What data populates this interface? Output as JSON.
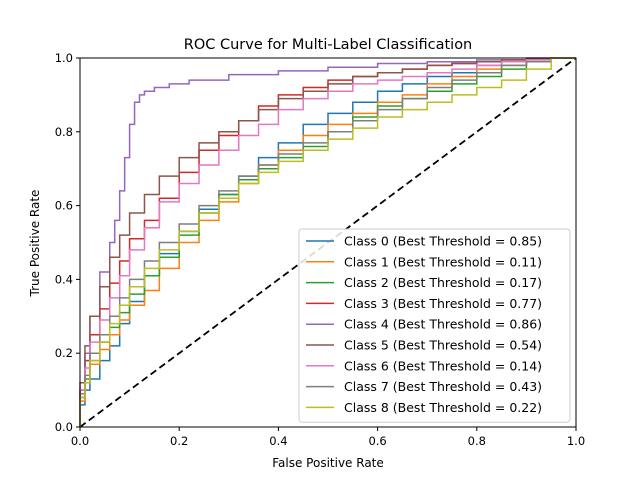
{
  "chart_data": {
    "type": "line",
    "title": "ROC Curve for Multi-Label Classification",
    "xlabel": "False Positive Rate",
    "ylabel": "True Positive Rate",
    "xlim": [
      0,
      1
    ],
    "ylim": [
      0,
      1
    ],
    "x_ticks": [
      "0.0",
      "0.2",
      "0.4",
      "0.6",
      "0.8",
      "1.0"
    ],
    "y_ticks": [
      "0.0",
      "0.2",
      "0.4",
      "0.6",
      "0.8",
      "1.0"
    ],
    "grid": false,
    "legend_position": "lower-right",
    "diagonal_reference": {
      "x": [
        0,
        1
      ],
      "y": [
        0,
        1
      ],
      "color": "#000000",
      "style": "dashed"
    },
    "series": [
      {
        "name": "Class 0 (Best Threshold = 0.85)",
        "color": "#1f77b4",
        "x": [
          0,
          0.01,
          0.02,
          0.04,
          0.06,
          0.08,
          0.1,
          0.13,
          0.16,
          0.2,
          0.24,
          0.28,
          0.32,
          0.36,
          0.4,
          0.45,
          0.5,
          0.55,
          0.6,
          0.65,
          0.7,
          0.75,
          0.8,
          0.85,
          0.9,
          0.95,
          1.0
        ],
        "y": [
          0,
          0.06,
          0.1,
          0.13,
          0.18,
          0.22,
          0.28,
          0.34,
          0.41,
          0.47,
          0.53,
          0.59,
          0.63,
          0.68,
          0.73,
          0.77,
          0.82,
          0.85,
          0.88,
          0.91,
          0.93,
          0.95,
          0.96,
          0.98,
          0.99,
          0.995,
          1.0
        ]
      },
      {
        "name": "Class 1 (Best Threshold = 0.11)",
        "color": "#ff7f0e",
        "x": [
          0,
          0.01,
          0.02,
          0.04,
          0.06,
          0.08,
          0.1,
          0.13,
          0.16,
          0.2,
          0.24,
          0.28,
          0.32,
          0.36,
          0.4,
          0.45,
          0.5,
          0.55,
          0.6,
          0.65,
          0.7,
          0.75,
          0.8,
          0.85,
          0.9,
          0.95,
          1.0
        ],
        "y": [
          0,
          0.07,
          0.12,
          0.17,
          0.21,
          0.25,
          0.29,
          0.33,
          0.37,
          0.43,
          0.5,
          0.56,
          0.61,
          0.66,
          0.71,
          0.75,
          0.79,
          0.82,
          0.85,
          0.88,
          0.9,
          0.93,
          0.95,
          0.97,
          0.98,
          0.99,
          1.0
        ]
      },
      {
        "name": "Class 2 (Best Threshold = 0.17)",
        "color": "#2ca02c",
        "x": [
          0,
          0.01,
          0.02,
          0.04,
          0.06,
          0.08,
          0.1,
          0.13,
          0.16,
          0.2,
          0.24,
          0.28,
          0.32,
          0.36,
          0.4,
          0.45,
          0.5,
          0.55,
          0.6,
          0.65,
          0.7,
          0.75,
          0.8,
          0.85,
          0.9,
          0.95,
          1.0
        ],
        "y": [
          0,
          0.08,
          0.13,
          0.18,
          0.23,
          0.27,
          0.31,
          0.36,
          0.41,
          0.46,
          0.52,
          0.58,
          0.63,
          0.67,
          0.7,
          0.73,
          0.76,
          0.8,
          0.84,
          0.87,
          0.89,
          0.91,
          0.93,
          0.95,
          0.97,
          0.99,
          1.0
        ]
      },
      {
        "name": "Class 3 (Best Threshold = 0.77)",
        "color": "#d62728",
        "x": [
          0,
          0.01,
          0.02,
          0.04,
          0.06,
          0.08,
          0.1,
          0.13,
          0.16,
          0.2,
          0.24,
          0.28,
          0.32,
          0.36,
          0.4,
          0.45,
          0.5,
          0.55,
          0.6,
          0.65,
          0.7,
          0.75,
          0.8,
          0.85,
          0.9,
          0.95,
          1.0
        ],
        "y": [
          0,
          0.1,
          0.18,
          0.25,
          0.32,
          0.39,
          0.45,
          0.51,
          0.56,
          0.62,
          0.69,
          0.75,
          0.79,
          0.83,
          0.87,
          0.9,
          0.92,
          0.94,
          0.95,
          0.96,
          0.97,
          0.98,
          0.985,
          0.99,
          0.995,
          0.998,
          1.0
        ]
      },
      {
        "name": "Class 4 (Best Threshold = 0.86)",
        "color": "#9467bd",
        "x": [
          0,
          0.01,
          0.02,
          0.04,
          0.06,
          0.07,
          0.08,
          0.09,
          0.1,
          0.11,
          0.12,
          0.13,
          0.15,
          0.18,
          0.22,
          0.3,
          0.4,
          0.5,
          0.6,
          0.7,
          0.8,
          0.9,
          1.0
        ],
        "y": [
          0,
          0.1,
          0.2,
          0.3,
          0.42,
          0.5,
          0.56,
          0.64,
          0.73,
          0.82,
          0.88,
          0.9,
          0.91,
          0.92,
          0.93,
          0.94,
          0.955,
          0.965,
          0.975,
          0.985,
          0.99,
          0.995,
          1.0
        ]
      },
      {
        "name": "Class 5 (Best Threshold = 0.54)",
        "color": "#8c564b",
        "x": [
          0,
          0.01,
          0.02,
          0.04,
          0.06,
          0.08,
          0.1,
          0.13,
          0.16,
          0.2,
          0.24,
          0.28,
          0.32,
          0.36,
          0.4,
          0.45,
          0.5,
          0.55,
          0.6,
          0.65,
          0.7,
          0.75,
          0.8,
          0.85,
          0.9,
          0.95,
          1.0
        ],
        "y": [
          0,
          0.12,
          0.22,
          0.3,
          0.38,
          0.46,
          0.52,
          0.58,
          0.63,
          0.68,
          0.73,
          0.77,
          0.8,
          0.83,
          0.86,
          0.89,
          0.91,
          0.93,
          0.95,
          0.96,
          0.97,
          0.98,
          0.985,
          0.99,
          0.995,
          0.998,
          1.0
        ]
      },
      {
        "name": "Class 6 (Best Threshold = 0.14)",
        "color": "#e377c2",
        "x": [
          0,
          0.01,
          0.02,
          0.04,
          0.06,
          0.08,
          0.1,
          0.13,
          0.16,
          0.2,
          0.24,
          0.28,
          0.32,
          0.36,
          0.4,
          0.45,
          0.5,
          0.55,
          0.6,
          0.65,
          0.7,
          0.75,
          0.8,
          0.85,
          0.9,
          0.95,
          1.0
        ],
        "y": [
          0,
          0.1,
          0.16,
          0.23,
          0.29,
          0.35,
          0.41,
          0.48,
          0.54,
          0.61,
          0.66,
          0.71,
          0.75,
          0.79,
          0.82,
          0.86,
          0.89,
          0.91,
          0.93,
          0.94,
          0.95,
          0.96,
          0.97,
          0.98,
          0.99,
          0.995,
          1.0
        ]
      },
      {
        "name": "Class 7 (Best Threshold = 0.43)",
        "color": "#7f7f7f",
        "x": [
          0,
          0.01,
          0.02,
          0.04,
          0.06,
          0.08,
          0.1,
          0.13,
          0.16,
          0.2,
          0.24,
          0.28,
          0.32,
          0.36,
          0.4,
          0.45,
          0.5,
          0.55,
          0.6,
          0.65,
          0.7,
          0.75,
          0.8,
          0.85,
          0.9,
          0.95,
          1.0
        ],
        "y": [
          0,
          0.09,
          0.14,
          0.2,
          0.25,
          0.3,
          0.35,
          0.4,
          0.45,
          0.5,
          0.55,
          0.6,
          0.64,
          0.68,
          0.71,
          0.74,
          0.77,
          0.8,
          0.83,
          0.86,
          0.89,
          0.92,
          0.94,
          0.96,
          0.98,
          0.99,
          1.0
        ]
      },
      {
        "name": "Class 8 (Best Threshold = 0.22)",
        "color": "#bcbd22",
        "x": [
          0,
          0.01,
          0.02,
          0.04,
          0.06,
          0.08,
          0.1,
          0.13,
          0.16,
          0.2,
          0.24,
          0.28,
          0.32,
          0.36,
          0.4,
          0.45,
          0.5,
          0.55,
          0.6,
          0.65,
          0.7,
          0.75,
          0.8,
          0.85,
          0.9,
          0.95,
          1.0
        ],
        "y": [
          0,
          0.08,
          0.12,
          0.18,
          0.23,
          0.28,
          0.33,
          0.38,
          0.43,
          0.48,
          0.53,
          0.58,
          0.62,
          0.66,
          0.69,
          0.72,
          0.75,
          0.78,
          0.81,
          0.84,
          0.86,
          0.88,
          0.9,
          0.92,
          0.94,
          0.97,
          1.0
        ]
      }
    ]
  }
}
